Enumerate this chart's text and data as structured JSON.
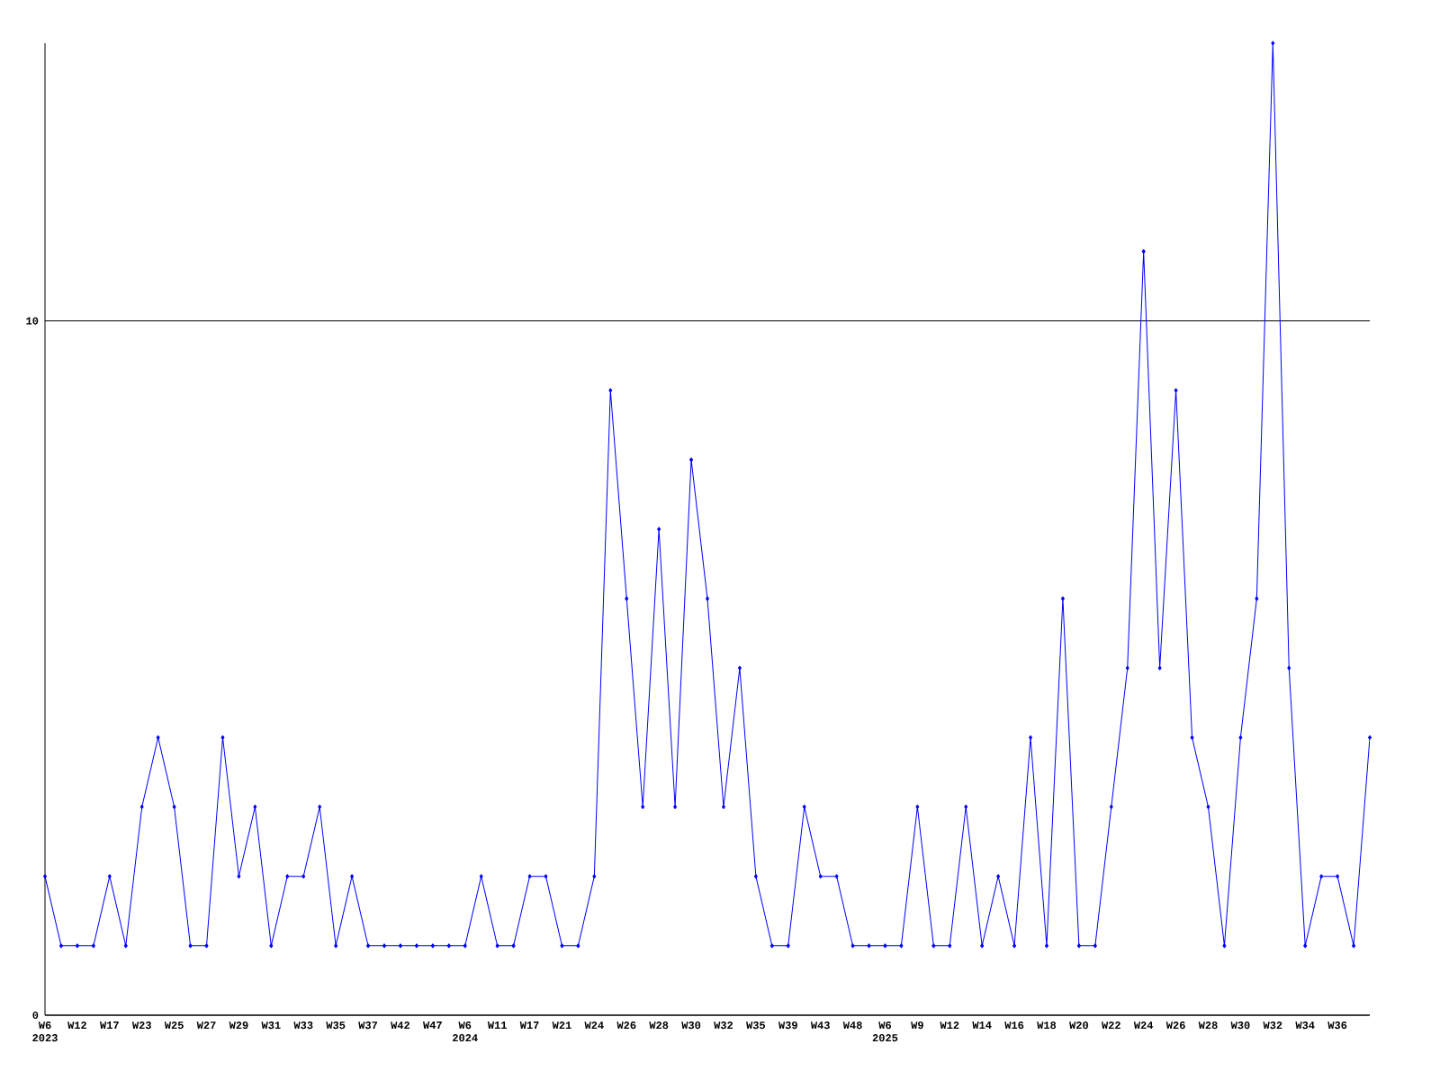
{
  "chart_data": {
    "type": "line",
    "categories": [
      "W6 2023",
      null,
      "W12",
      null,
      "W17",
      null,
      "W23",
      null,
      "W25",
      null,
      "W27",
      null,
      "W29",
      null,
      "W31",
      null,
      "W33",
      null,
      "W35",
      null,
      "W37",
      null,
      "W42",
      null,
      "W47",
      null,
      "W6 2024",
      null,
      "W11",
      null,
      "W17",
      null,
      "W21",
      null,
      "W24",
      null,
      "W26",
      null,
      "W28",
      null,
      "W30",
      null,
      "W32",
      null,
      "W35",
      null,
      "W39",
      null,
      "W43",
      null,
      "W48",
      null,
      "W6 2025",
      null,
      "W9",
      null,
      "W12",
      null,
      "W14",
      null,
      "W16",
      null,
      "W18",
      null,
      "W20",
      null,
      "W22",
      null,
      "W24",
      null,
      "W26",
      null,
      "W28",
      null,
      "W30",
      null,
      "W32",
      null,
      "W34",
      null,
      "W36",
      null,
      null
    ],
    "values": [
      2,
      1,
      1,
      1,
      2,
      1,
      3,
      4,
      3,
      1,
      1,
      4,
      2,
      3,
      1,
      2,
      2,
      3,
      1,
      2,
      1,
      1,
      1,
      1,
      1,
      1,
      1,
      2,
      1,
      1,
      2,
      2,
      1,
      1,
      2,
      9,
      6,
      3,
      7,
      3,
      8,
      6,
      3,
      5,
      2,
      1,
      1,
      3,
      2,
      2,
      1,
      1,
      1,
      1,
      3,
      1,
      1,
      3,
      1,
      2,
      1,
      4,
      1,
      6,
      1,
      1,
      3,
      5,
      11,
      5,
      9,
      4,
      3,
      1,
      4,
      6,
      14,
      5,
      1,
      2,
      2,
      1,
      4
    ],
    "color": "#0000ff",
    "marker": "diamond",
    "grid": "y",
    "ylim": [
      0,
      14
    ],
    "yticks": [
      0,
      10
    ]
  }
}
